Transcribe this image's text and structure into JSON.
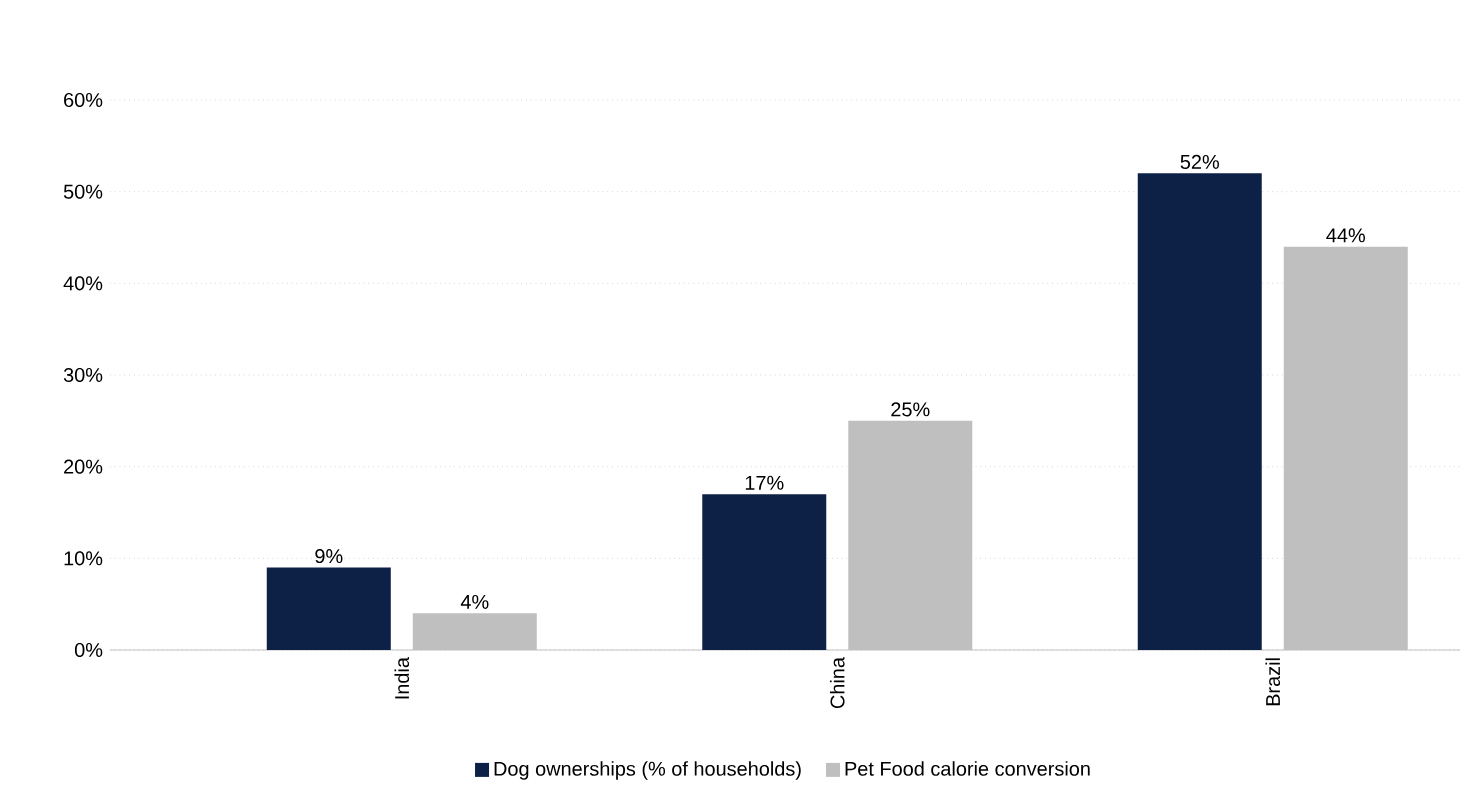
{
  "chart_data": {
    "type": "bar",
    "categories": [
      "India",
      "China",
      "Brazil"
    ],
    "series": [
      {
        "name": "Dog ownerships (% of households)",
        "color": "#0c2145",
        "values": [
          9,
          17,
          52
        ],
        "value_labels": [
          "9%",
          "17%",
          "52%"
        ]
      },
      {
        "name": "Pet Food calorie conversion",
        "color": "#bfbfbf",
        "values": [
          4,
          25,
          44
        ],
        "value_labels": [
          "4%",
          "25%",
          "44%"
        ]
      }
    ],
    "ylim": [
      0,
      60
    ],
    "yticks": [
      {
        "value": 0,
        "label": "0%"
      },
      {
        "value": 10,
        "label": "10%"
      },
      {
        "value": 20,
        "label": "20%"
      },
      {
        "value": 30,
        "label": "30%"
      },
      {
        "value": 40,
        "label": "40%"
      },
      {
        "value": 50,
        "label": "50%"
      },
      {
        "value": 60,
        "label": "60%"
      }
    ],
    "grid": "y",
    "legend": "bottom"
  }
}
